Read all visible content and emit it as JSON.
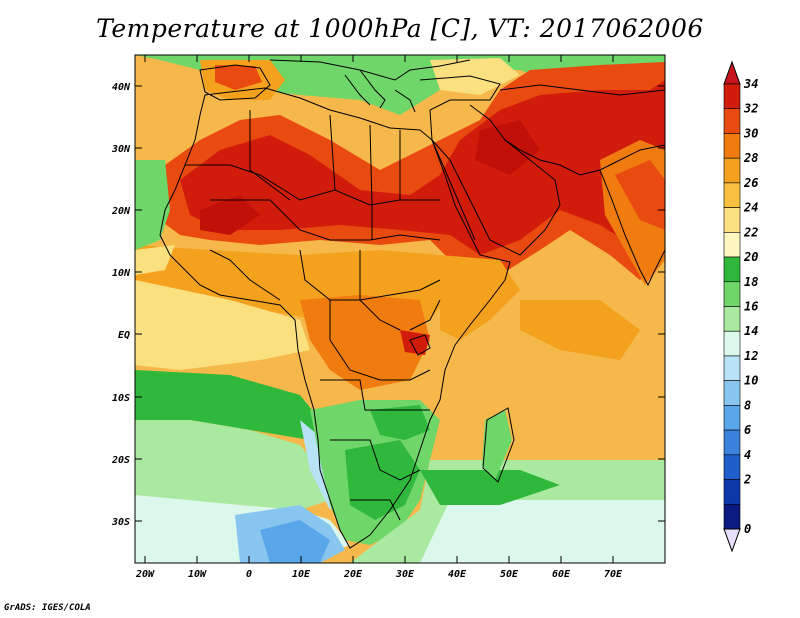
{
  "title": "Temperature at 1000hPa [C], VT: 2017062006",
  "footer": "GrADS: IGES/COLA",
  "map": {
    "lat_labels": [
      "40N",
      "30N",
      "20N",
      "10N",
      "EQ",
      "10S",
      "20S",
      "30S"
    ],
    "lon_labels": [
      "20W",
      "10W",
      "0",
      "10E",
      "20E",
      "30E",
      "40E",
      "50E",
      "60E",
      "70E"
    ]
  },
  "colorbar": {
    "labels": [
      "34",
      "32",
      "30",
      "28",
      "26",
      "24",
      "22",
      "20",
      "18",
      "16",
      "14",
      "12",
      "10",
      "8",
      "6",
      "4",
      "2",
      "0"
    ],
    "colors": [
      "#d11c0c",
      "#e84a10",
      "#f07c10",
      "#f4a21e",
      "#f8c040",
      "#fbe080",
      "#fdf6c0",
      "#2fb83c",
      "#6fd66a",
      "#a9eaa0",
      "#dcf8ec",
      "#b8e2f6",
      "#88c6f0",
      "#5aa6ea",
      "#3c82dc",
      "#205ecc",
      "#0c38a8",
      "#0a1a80"
    ],
    "top_arrow_color": "#c8141e",
    "bottom_arrow_color": "#e8e0fa"
  }
}
